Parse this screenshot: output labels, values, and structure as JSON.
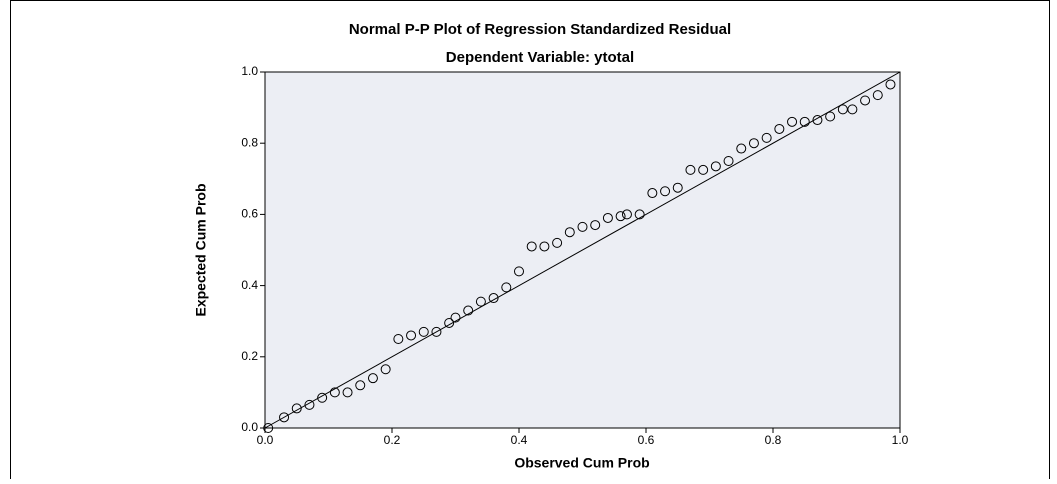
{
  "chart_data": {
    "type": "scatter",
    "title": "Normal P-P Plot of Regression Standardized Residual",
    "subtitle": "Dependent Variable: ytotal",
    "x_label": "Observed Cum Prob",
    "y_label": "Expected Cum Prob",
    "xlim": [
      0,
      1
    ],
    "ylim": [
      0,
      1
    ],
    "xticks": [
      {
        "value": 0,
        "label": "0.0"
      },
      0.2,
      0.4,
      0.6,
      0.8,
      {
        "value": 1,
        "label": "1.0"
      }
    ],
    "yticks": [
      {
        "value": 0,
        "label": "0.0"
      },
      0.2,
      0.4,
      0.6,
      0.8,
      {
        "value": 1,
        "label": "1.0"
      }
    ],
    "color": "#000000",
    "x": [
      0.005,
      0.03,
      0.05,
      0.07,
      0.09,
      0.11,
      0.13,
      0.15,
      0.17,
      0.19,
      0.21,
      0.23,
      0.25,
      0.27,
      0.29,
      0.3,
      0.32,
      0.34,
      0.36,
      0.38,
      0.4,
      0.42,
      0.44,
      0.46,
      0.48,
      0.5,
      0.52,
      0.54,
      0.56,
      0.57,
      0.59,
      0.61,
      0.63,
      0.65,
      0.67,
      0.69,
      0.71,
      0.73,
      0.75,
      0.77,
      0.79,
      0.81,
      0.83,
      0.85,
      0.87,
      0.89,
      0.91,
      0.925,
      0.945,
      0.965,
      0.985
    ],
    "values": [
      0,
      0.03,
      0.055,
      0.065,
      0.085,
      0.1,
      0.1,
      0.12,
      0.14,
      0.165,
      0.25,
      0.26,
      0.27,
      0.27,
      0.295,
      0.31,
      0.33,
      0.355,
      0.365,
      0.395,
      0.44,
      0.51,
      0.51,
      0.52,
      0.55,
      0.565,
      0.57,
      0.59,
      0.595,
      0.6,
      0.6,
      0.66,
      0.665,
      0.675,
      0.725,
      0.725,
      0.735,
      0.75,
      0.785,
      0.8,
      0.815,
      0.84,
      0.86,
      0.86,
      0.865,
      0.875,
      0.895,
      0.895,
      0.92,
      0.935,
      0.965
    ]
  }
}
